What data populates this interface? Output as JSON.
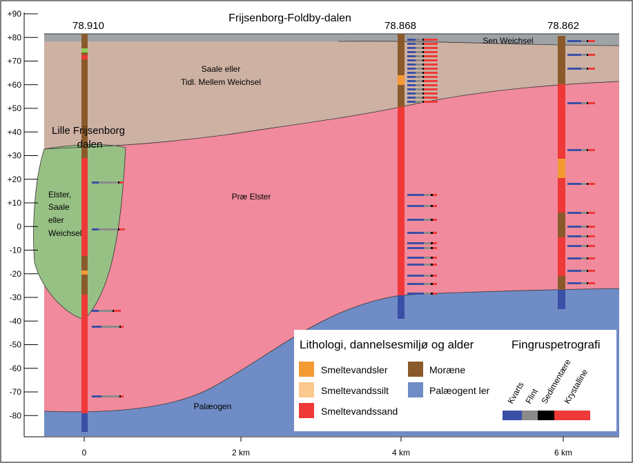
{
  "title": "Frijsenborg-Foldby-dalen",
  "y_ticks": [
    "+90",
    "+80",
    "+70",
    "+60",
    "+50",
    "+40",
    "+30",
    "+20",
    "+10",
    "0",
    "-10",
    "-20",
    "-30",
    "-40",
    "-50",
    "-60",
    "-70",
    "-80"
  ],
  "x_ticks": [
    "0",
    "2 km",
    "4 km",
    "6 km"
  ],
  "boreholes": [
    {
      "id": "78.910",
      "km": 0
    },
    {
      "id": "78.868",
      "km": 4
    },
    {
      "id": "78.862",
      "km": 6
    }
  ],
  "units": {
    "sen_weichsel": "Sen Weichsel",
    "saale_line1": "Saale eller",
    "saale_line2": "Tidl. Mellem Weichsel",
    "valley_line1": "Lille Frijsenborg",
    "valley_line2": "dalen",
    "fill_lines": [
      "Elster,",
      "Saale",
      "eller",
      "Weichsel"
    ],
    "prae_elster": "Præ Elster",
    "palaeogen": "Palæogen"
  },
  "legend": {
    "title": "Lithologi, dannelsesmiljø og alder",
    "items": [
      {
        "label": "Smeltevandsler",
        "color": "#f39a32"
      },
      {
        "label": "Smeltevandssilt",
        "color": "#fbc890"
      },
      {
        "label": "Smeltevandssand",
        "color": "#ef3838"
      },
      {
        "label": "Moræne",
        "color": "#8b5a2b"
      },
      {
        "label": "Palæogent ler",
        "color": "#6f8cc6"
      }
    ]
  },
  "finger": {
    "title": "Fingruspetrografi",
    "labels": [
      "Kvarts",
      "Flint",
      "Sedimentære",
      "Krystalline"
    ],
    "colors": [
      "#3a4fa6",
      "#8a8a8a",
      "#000000",
      "#ef3838"
    ]
  },
  "colors": {
    "sen_weichsel": "#9fa3a6",
    "saale": "#cdb1a3",
    "prae_elster": "#f08a9c",
    "palaeogen": "#6f8cc6",
    "valley_fill": "#97c085",
    "core_brown": "#8b5a2b",
    "core_red": "#ef3838",
    "core_blue": "#3a4fa6"
  }
}
